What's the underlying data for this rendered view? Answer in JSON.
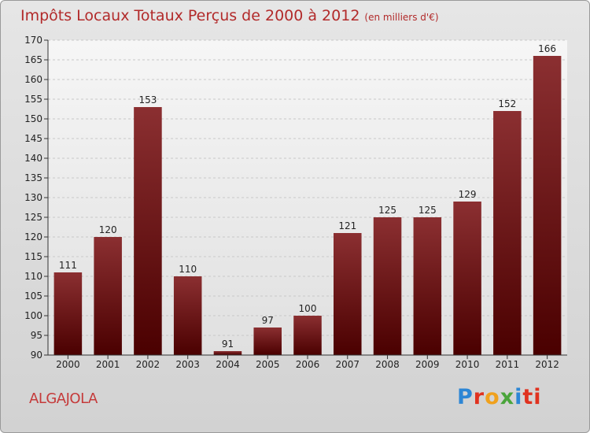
{
  "header": {
    "title": "Impôts Locaux Totaux Perçus de 2000 à 2012",
    "subtitle": "(en milliers d'€)"
  },
  "footer": {
    "place": "ALGAJOLA",
    "logo_letters": [
      "P",
      "r",
      "o",
      "x",
      "i",
      "ti"
    ]
  },
  "colors": {
    "bar_top": "#8b2f31",
    "bar_bottom": "#4a0000",
    "title": "#b22a2a",
    "grid": "#c8c8c8"
  },
  "chart_data": {
    "type": "bar",
    "title": "Impôts Locaux Totaux Perçus de 2000 à 2012",
    "subtitle": "(en milliers d'€)",
    "categories": [
      "2000",
      "2001",
      "2002",
      "2003",
      "2004",
      "2005",
      "2006",
      "2007",
      "2008",
      "2009",
      "2010",
      "2011",
      "2012"
    ],
    "values": [
      111,
      120,
      153,
      110,
      91,
      97,
      100,
      121,
      125,
      125,
      129,
      152,
      166
    ],
    "ylim": [
      90,
      170
    ],
    "yticks": [
      90,
      95,
      100,
      105,
      110,
      115,
      120,
      125,
      130,
      135,
      140,
      145,
      150,
      155,
      160,
      165,
      170
    ],
    "grid": "horizontal dashed",
    "data_labels": true
  }
}
